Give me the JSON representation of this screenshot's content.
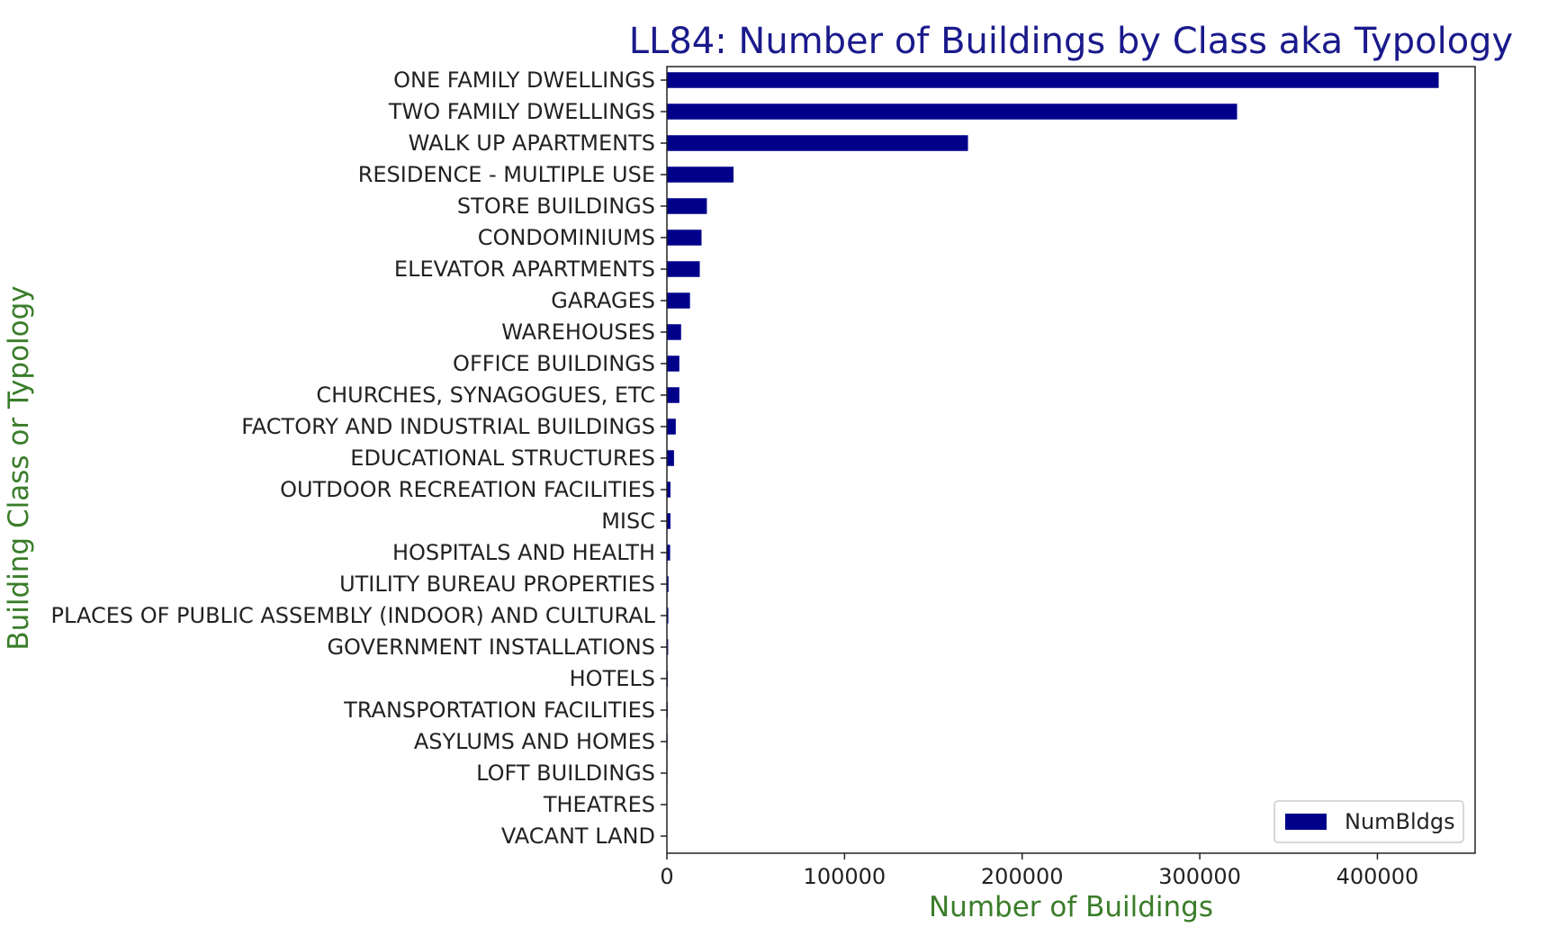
{
  "chart_data": {
    "type": "bar",
    "orientation": "horizontal",
    "title": "LL84: Number of Buildings by Class aka Typology",
    "xlabel": "Number of Buildings",
    "ylabel": "Building Class or Typology",
    "categories": [
      "ONE FAMILY DWELLINGS",
      "TWO FAMILY DWELLINGS",
      "WALK UP APARTMENTS",
      "RESIDENCE - MULTIPLE USE",
      "STORE BUILDINGS",
      "CONDOMINIUMS",
      "ELEVATOR APARTMENTS",
      "GARAGES",
      "WAREHOUSES",
      "OFFICE BUILDINGS",
      "CHURCHES, SYNAGOGUES, ETC",
      "FACTORY AND INDUSTRIAL BUILDINGS",
      "EDUCATIONAL STRUCTURES",
      "OUTDOOR RECREATION FACILITIES",
      "MISC",
      "HOSPITALS AND HEALTH",
      "UTILITY BUREAU PROPERTIES",
      "PLACES OF PUBLIC ASSEMBLY (INDOOR) AND CULTURAL",
      "GOVERNMENT INSTALLATIONS",
      "HOTELS",
      "TRANSPORTATION FACILITIES",
      "ASYLUMS AND HOMES",
      "LOFT BUILDINGS",
      "THEATRES",
      "VACANT LAND"
    ],
    "series": [
      {
        "name": "NumBldgs",
        "color": "#00008b",
        "values": [
          434500,
          321000,
          169500,
          37500,
          22500,
          19500,
          18500,
          13000,
          8000,
          7000,
          7000,
          5000,
          4000,
          2000,
          2000,
          1800,
          900,
          800,
          700,
          500,
          500,
          400,
          300,
          200,
          100
        ]
      }
    ],
    "xlim": [
      0,
      455000
    ],
    "xticks": [
      "0",
      "100000",
      "200000",
      "300000",
      "400000"
    ],
    "xtick_values": [
      0,
      100000,
      200000,
      300000,
      400000
    ],
    "grid": false,
    "legend_position": "lower-right",
    "colors": {
      "title": "#1a1a8c",
      "axis_title": "#3a7d2a",
      "bar": "#00008b"
    }
  }
}
